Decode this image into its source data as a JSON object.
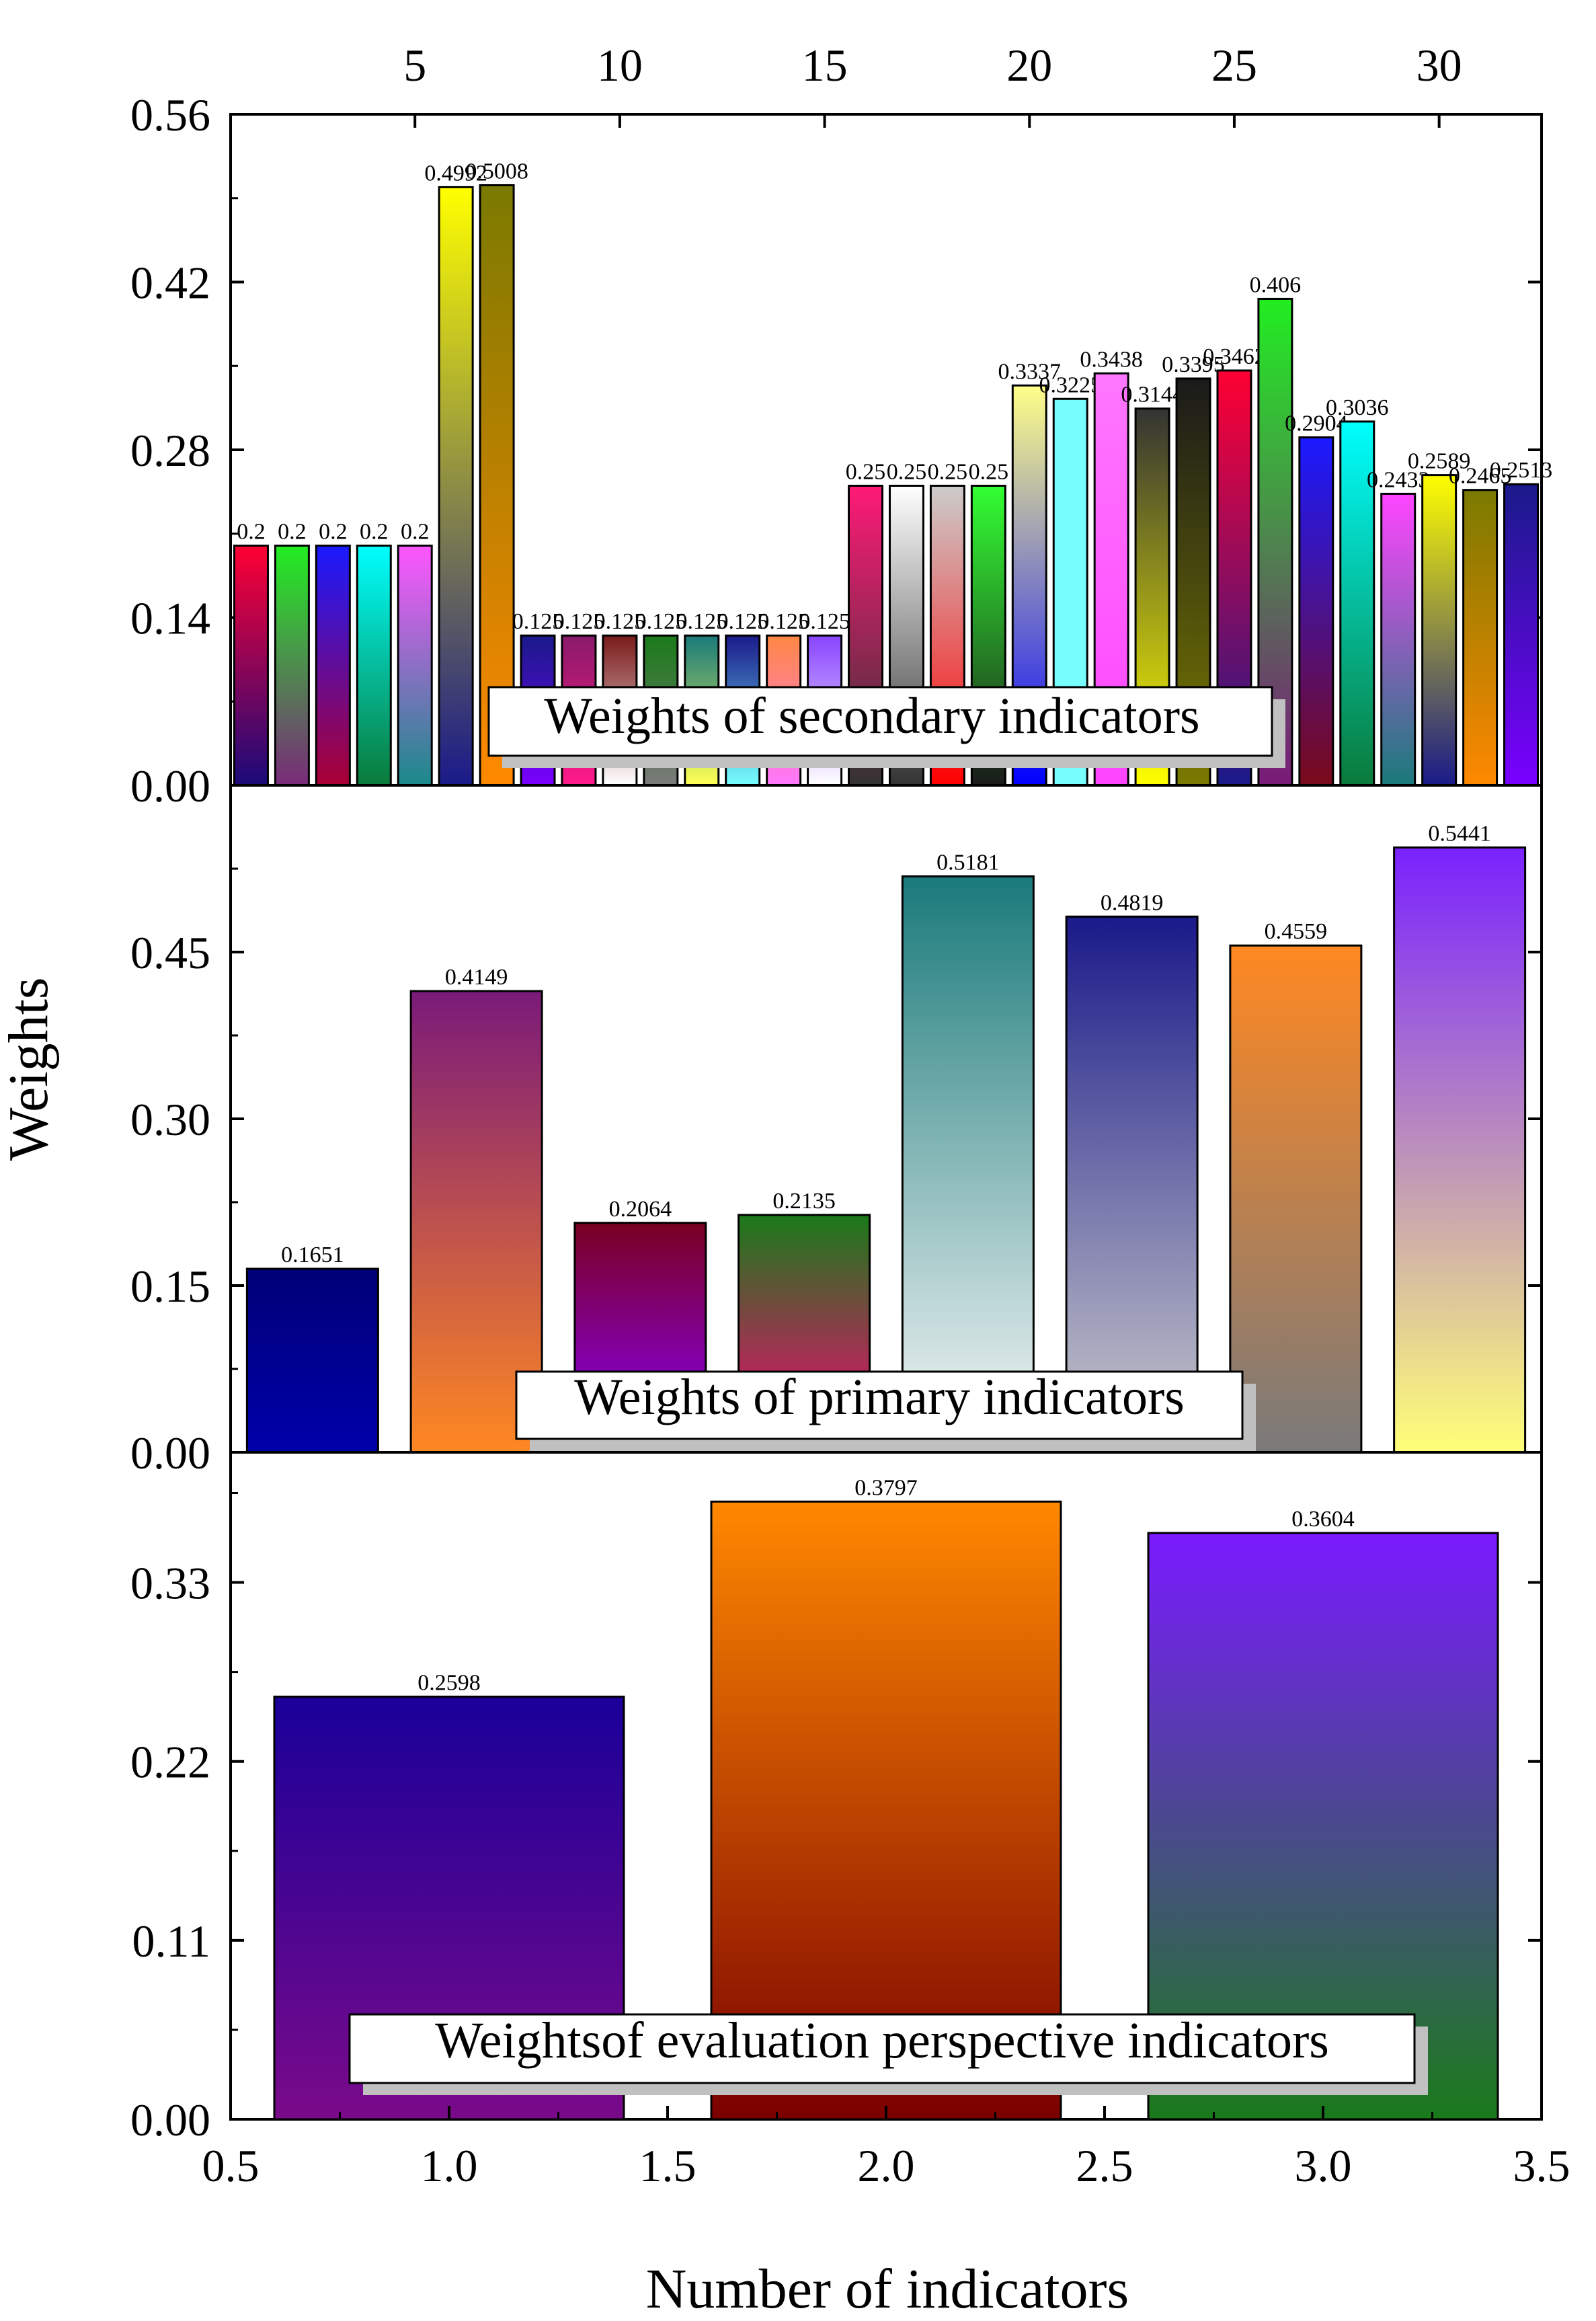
{
  "figure": {
    "ylabel": "Weights",
    "xlabel": "Number of indicators"
  },
  "top_axis_ticks": [
    "5",
    "10",
    "15",
    "20",
    "25",
    "30"
  ],
  "chart_data": [
    {
      "type": "bar",
      "title": "Weights of secondary indicators",
      "x_axis": "top",
      "xlim": [
        0.5,
        32.5
      ],
      "ylim": [
        0,
        0.56
      ],
      "yticks": [
        "0.00",
        "0.14",
        "0.28",
        "0.42",
        "0.56"
      ],
      "categories": [
        1,
        2,
        3,
        4,
        5,
        6,
        7,
        8,
        9,
        10,
        11,
        12,
        13,
        14,
        15,
        16,
        17,
        18,
        19,
        20,
        21,
        22,
        23,
        24,
        25,
        26,
        27,
        28,
        29,
        30,
        31,
        32
      ],
      "values": [
        0.2,
        0.2,
        0.2,
        0.2,
        0.2,
        0.4992,
        0.5008,
        0.125,
        0.125,
        0.125,
        0.125,
        0.125,
        0.125,
        0.125,
        0.125,
        0.25,
        0.25,
        0.25,
        0.25,
        0.3337,
        0.3225,
        0.3438,
        0.3144,
        0.3395,
        0.3462,
        0.406,
        0.2904,
        0.3036,
        0.2433,
        0.2589,
        0.2465,
        0.2513
      ],
      "labels": [
        "0.2",
        "0.2",
        "0.2",
        "0.2",
        "0.2",
        "0.4992",
        "0.5008",
        "0.125",
        "0.125",
        "0.125",
        "0.125",
        "0.125",
        "0.125",
        "0.125",
        "0.125",
        "0.25",
        "0.25",
        "0.25",
        "0.25",
        "0.3337",
        "0.3225",
        "0.3438",
        "0.3144",
        "0.3395",
        "0.3462",
        "0.406",
        "0.2904",
        "0.3036",
        "0.2433",
        "0.2589",
        "0.2465",
        "0.2513"
      ],
      "colors": [
        [
          "#ff0033",
          "#1a0a7a"
        ],
        [
          "#22ee22",
          "#7a2a7a"
        ],
        [
          "#1a1aff",
          "#aa0033"
        ],
        [
          "#00ffff",
          "#0a7a3a"
        ],
        [
          "#ff55ff",
          "#1a8a8a"
        ],
        [
          "#ffff00",
          "#1a1a8a"
        ],
        [
          "#7a7a00",
          "#ff8800"
        ],
        [
          "#1a1a8a",
          "#7a00ff"
        ],
        [
          "#8a1a6a",
          "#ff1a8a"
        ],
        [
          "#7a1a1a",
          "#ffffff"
        ],
        [
          "#1a7a1a",
          "#7a7a7a"
        ],
        [
          "#1a7a7a",
          "#ffff55"
        ],
        [
          "#1a1a8a",
          "#77ffff"
        ],
        [
          "#ff8844",
          "#ff77ff"
        ],
        [
          "#8844ff",
          "#ffffff"
        ],
        [
          "#ff1a77",
          "#333333"
        ],
        [
          "#ffffff",
          "#333333"
        ],
        [
          "#cccccc",
          "#ff0000"
        ],
        [
          "#33ff33",
          "#1a1a1a"
        ],
        [
          "#ffff88",
          "#0000ff"
        ],
        [
          "#77ffff",
          "#77ffff"
        ],
        [
          "#ff77ff",
          "#ff44ff"
        ],
        [
          "#333333",
          "#ffff00"
        ],
        [
          "#1a1a1a",
          "#7a7a00"
        ],
        [
          "#ff0033",
          "#1a1a8a"
        ],
        [
          "#22ee22",
          "#7a1a7a"
        ],
        [
          "#1a1aff",
          "#7a0a1a"
        ],
        [
          "#00ffff",
          "#0a7a3a"
        ],
        [
          "#ff44ff",
          "#1a7a7a"
        ],
        [
          "#ffff00",
          "#1a1a8a"
        ],
        [
          "#7a7a00",
          "#ff8800"
        ],
        [
          "#1a1a8a",
          "#7a00ff"
        ]
      ]
    },
    {
      "type": "bar",
      "title": "Weights of primary indicators",
      "xlim": [
        0.5,
        8.5
      ],
      "ylim": [
        0,
        0.6
      ],
      "yticks": [
        "0.00",
        "0.15",
        "0.30",
        "0.45"
      ],
      "categories": [
        1,
        2,
        3,
        4,
        5,
        6,
        7,
        8
      ],
      "values": [
        0.1651,
        0.4149,
        0.2064,
        0.2135,
        0.5181,
        0.4819,
        0.4559,
        0.5441
      ],
      "labels": [
        "0.1651",
        "0.4149",
        "0.2064",
        "0.2135",
        "0.5181",
        "0.4819",
        "0.4559",
        "0.5441"
      ],
      "colors": [
        [
          "#000077",
          "#0000aa"
        ],
        [
          "#7a1a7a",
          "#ff8822"
        ],
        [
          "#7a0022",
          "#8800ff"
        ],
        [
          "#1a7a1a",
          "#ff0077"
        ],
        [
          "#1a7a7a",
          "#f8f8f8"
        ],
        [
          "#1a1a8a",
          "#cccccc"
        ],
        [
          "#ff8822",
          "#7a7a7a"
        ],
        [
          "#7a22ff",
          "#ffff77"
        ]
      ]
    },
    {
      "type": "bar",
      "title": "Weightsof evaluation perspective indicators",
      "xlim": [
        0.5,
        3.5
      ],
      "ylim": [
        0,
        0.41
      ],
      "yticks": [
        "0.00",
        "0.11",
        "0.22",
        "0.33"
      ],
      "xticks": [
        "0.5",
        "1.0",
        "1.5",
        "2.0",
        "2.5",
        "3.0",
        "3.5"
      ],
      "categories": [
        1,
        2,
        3
      ],
      "values": [
        0.2598,
        0.3797,
        0.3604
      ],
      "labels": [
        "0.2598",
        "0.3797",
        "0.3604"
      ],
      "colors": [
        [
          "#1a0099",
          "#7a0a8a"
        ],
        [
          "#ff8800",
          "#7a0000"
        ],
        [
          "#7a1aff",
          "#1a7a1a"
        ]
      ]
    }
  ]
}
